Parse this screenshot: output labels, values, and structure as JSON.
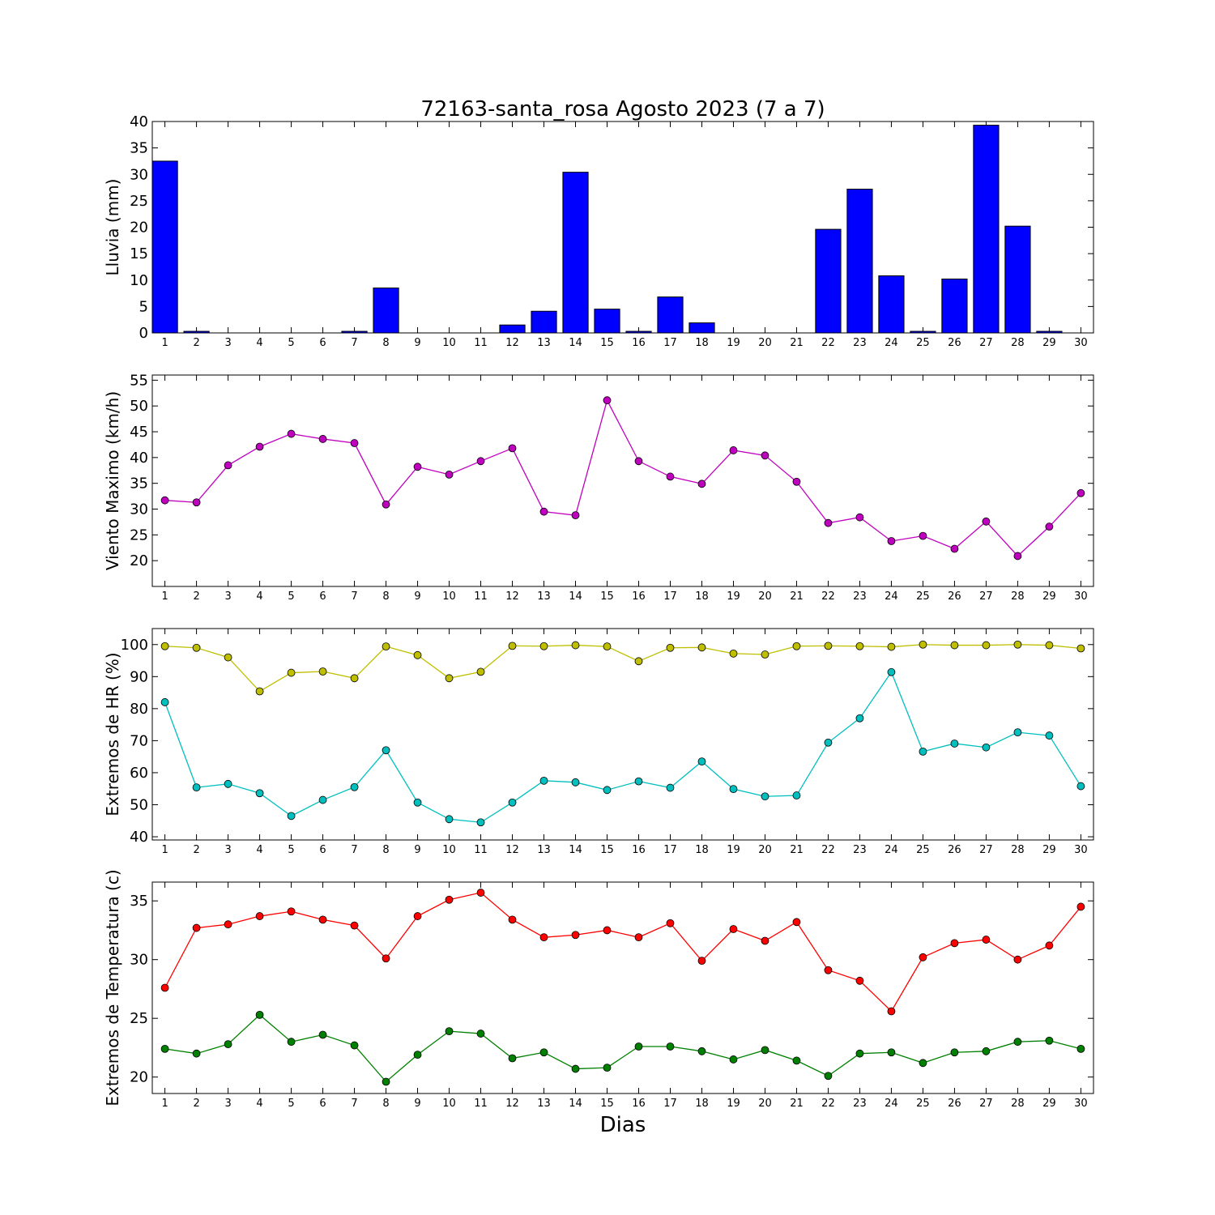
{
  "title": "72163-santa_rosa Agosto 2023  (7 a 7)",
  "xlabel": "Dias",
  "chart_data": [
    {
      "type": "bar",
      "ylabel": "Lluvia (mm)",
      "ylim": [
        0,
        40
      ],
      "yticks": [
        0,
        5,
        10,
        15,
        20,
        25,
        30,
        35,
        40
      ],
      "categories": [
        1,
        2,
        3,
        4,
        5,
        6,
        7,
        8,
        9,
        10,
        11,
        12,
        13,
        14,
        15,
        16,
        17,
        18,
        19,
        20,
        21,
        22,
        23,
        24,
        25,
        26,
        27,
        28,
        29,
        30
      ],
      "series": [
        {
          "color": "#0000ff",
          "values": [
            32.5,
            0.3,
            0,
            0,
            0,
            0,
            0.3,
            8.5,
            0,
            0,
            0,
            1.5,
            4.1,
            30.4,
            4.5,
            0.3,
            6.8,
            1.9,
            0,
            0,
            0,
            19.6,
            27.2,
            10.8,
            0.3,
            10.2,
            39.3,
            20.2,
            0.3,
            0
          ]
        }
      ]
    },
    {
      "type": "line",
      "ylabel": "Viento Maximo (km/h)",
      "ylim": [
        15,
        56
      ],
      "yticks": [
        20,
        25,
        30,
        35,
        40,
        45,
        50,
        55
      ],
      "categories": [
        1,
        2,
        3,
        4,
        5,
        6,
        7,
        8,
        9,
        10,
        11,
        12,
        13,
        14,
        15,
        16,
        17,
        18,
        19,
        20,
        21,
        22,
        23,
        24,
        25,
        26,
        27,
        28,
        29,
        30
      ],
      "series": [
        {
          "color": "#bf00bf",
          "values": [
            31.7,
            31.3,
            38.5,
            42.1,
            44.6,
            43.6,
            42.8,
            30.9,
            38.2,
            36.7,
            39.3,
            41.8,
            29.5,
            28.8,
            51.1,
            39.3,
            36.3,
            34.9,
            41.4,
            40.4,
            35.3,
            27.3,
            28.4,
            23.8,
            24.8,
            22.3,
            27.6,
            20.9,
            26.6,
            33.1
          ]
        }
      ]
    },
    {
      "type": "line",
      "ylabel": "Extremos de HR (%)",
      "ylim": [
        39,
        105
      ],
      "yticks": [
        40,
        50,
        60,
        70,
        80,
        90,
        100
      ],
      "categories": [
        1,
        2,
        3,
        4,
        5,
        6,
        7,
        8,
        9,
        10,
        11,
        12,
        13,
        14,
        15,
        16,
        17,
        18,
        19,
        20,
        21,
        22,
        23,
        24,
        25,
        26,
        27,
        28,
        29,
        30
      ],
      "series": [
        {
          "color": "#bfbf00",
          "values": [
            99.5,
            99,
            96,
            85.4,
            91.2,
            91.6,
            89.5,
            99.4,
            96.7,
            89.5,
            91.5,
            99.6,
            99.5,
            99.8,
            99.4,
            94.8,
            99,
            99.1,
            97.2,
            96.9,
            99.5,
            99.6,
            99.5,
            99.3,
            100,
            99.8,
            99.8,
            100,
            99.8,
            98.8
          ]
        },
        {
          "color": "#00bfbf",
          "values": [
            82,
            55.4,
            56.5,
            53.6,
            46.5,
            51.5,
            55.5,
            67,
            50.7,
            45.5,
            44.5,
            50.7,
            57.5,
            57,
            54.6,
            57.3,
            55.3,
            63.5,
            54.9,
            52.6,
            52.9,
            69.4,
            77,
            91.4,
            66.6,
            69.1,
            67.9,
            72.6,
            71.6,
            55.8
          ]
        }
      ]
    },
    {
      "type": "line",
      "ylabel": "Extremos de Temperatura (c)",
      "ylim": [
        18.6,
        36.6
      ],
      "yticks": [
        20,
        25,
        30,
        35
      ],
      "categories": [
        1,
        2,
        3,
        4,
        5,
        6,
        7,
        8,
        9,
        10,
        11,
        12,
        13,
        14,
        15,
        16,
        17,
        18,
        19,
        20,
        21,
        22,
        23,
        24,
        25,
        26,
        27,
        28,
        29,
        30
      ],
      "series": [
        {
          "color": "#ff0000",
          "values": [
            27.6,
            32.7,
            33,
            33.7,
            34.1,
            33.4,
            32.9,
            30.1,
            33.7,
            35.1,
            35.7,
            33.4,
            31.9,
            32.1,
            32.5,
            31.9,
            33.1,
            29.9,
            32.6,
            31.6,
            33.2,
            29.1,
            28.2,
            25.6,
            30.2,
            31.4,
            31.7,
            30,
            31.2,
            34.5
          ]
        },
        {
          "color": "#008000",
          "values": [
            22.4,
            22,
            22.8,
            25.3,
            23,
            23.6,
            22.7,
            19.6,
            21.9,
            23.9,
            23.7,
            21.6,
            22.1,
            20.7,
            20.8,
            22.6,
            22.6,
            22.2,
            21.5,
            22.3,
            21.4,
            20.1,
            22,
            22.1,
            21.2,
            22.1,
            22.2,
            23,
            23.1,
            22.4
          ]
        }
      ]
    }
  ]
}
